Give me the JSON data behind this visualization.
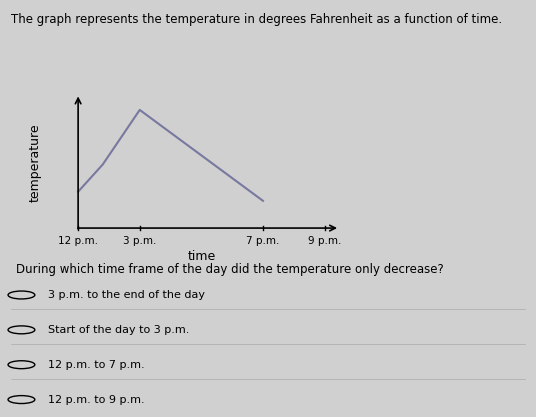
{
  "title": "The graph represents the temperature in degrees Fahrenheit as a function of time.",
  "xlabel": "time",
  "ylabel": "temperature",
  "x_tick_labels": [
    "12 p.m.",
    "3 p.m.",
    "7 p.m.",
    "9 p.m."
  ],
  "line_x": [
    0,
    0.4,
    1.0,
    3.0
  ],
  "line_y": [
    2.0,
    3.5,
    6.5,
    1.5
  ],
  "line_color": "#7878a0",
  "background_color": "#d0d0d0",
  "question": "During which time frame of the day did the temperature only decrease?",
  "options": [
    "3 p.m. to the end of the day",
    "Start of the day to 3 p.m.",
    "12 p.m. to 7 p.m.",
    "12 p.m. to 9 p.m."
  ],
  "fig_width": 5.36,
  "fig_height": 4.17,
  "dpi": 100
}
